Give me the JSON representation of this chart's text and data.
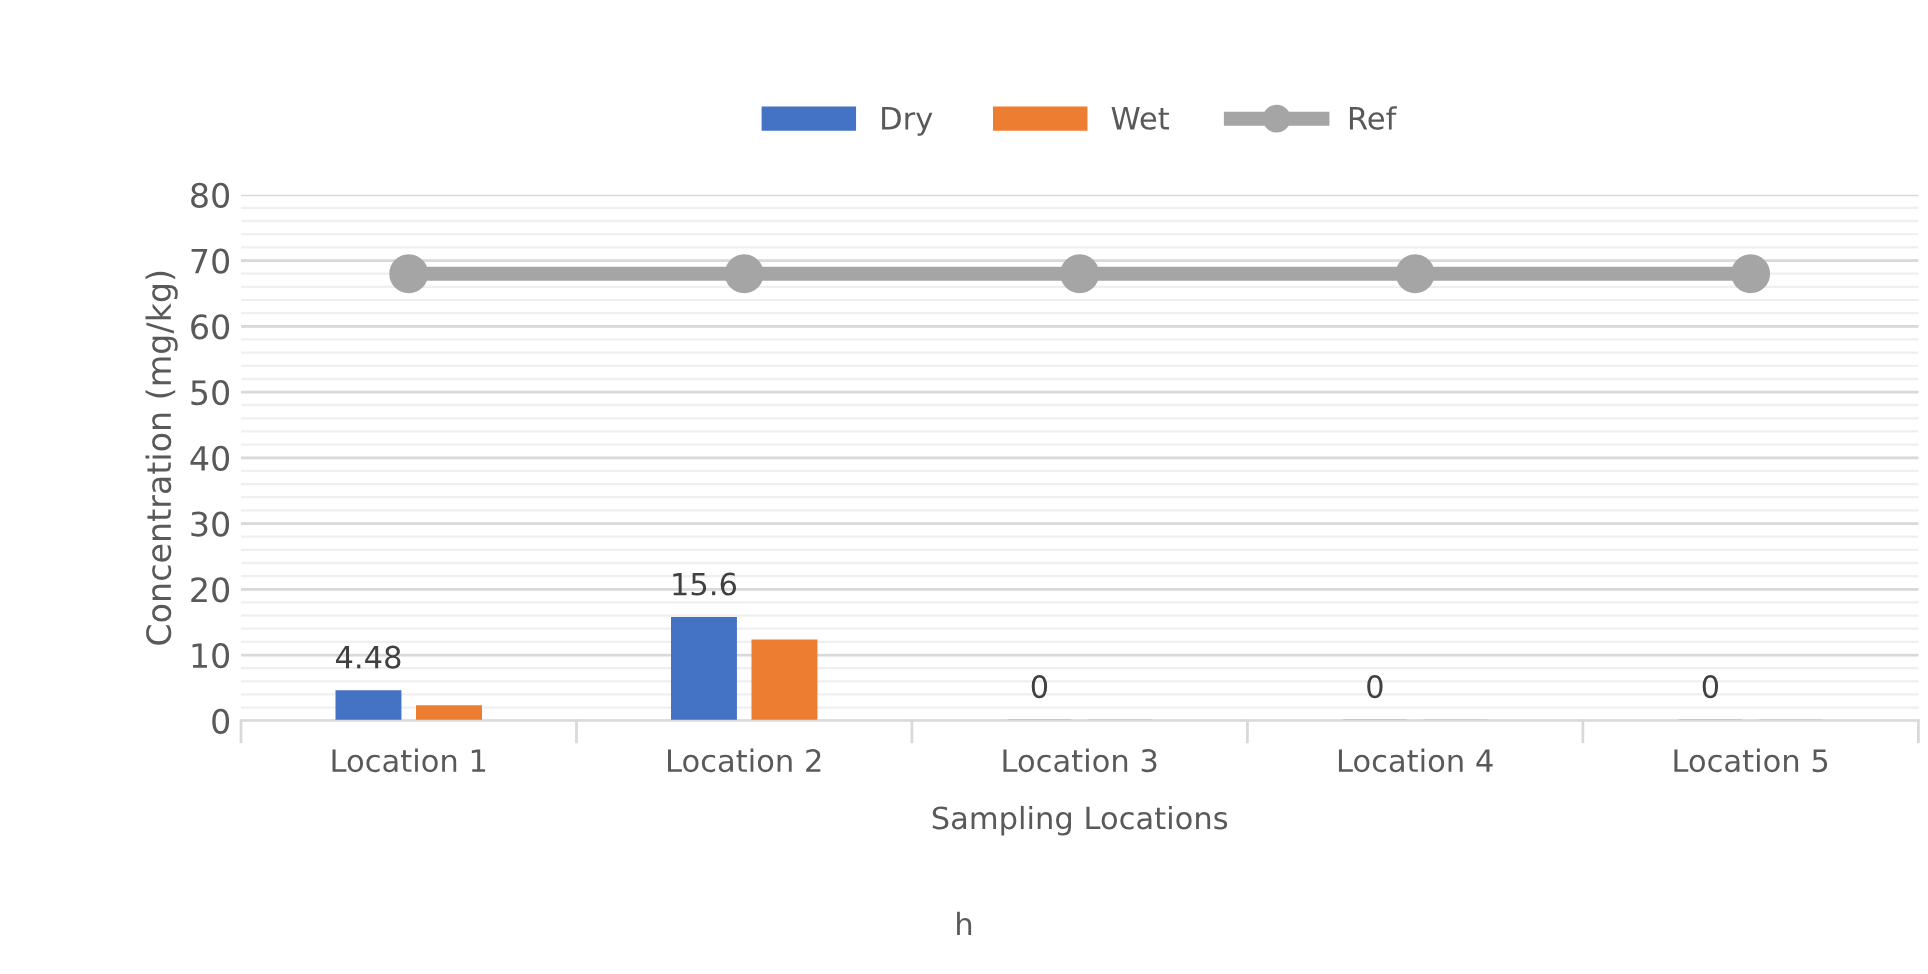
{
  "chart_data": {
    "type": "bar",
    "categories": [
      "Location 1",
      "Location 2",
      "Location 3",
      "Location 4",
      "Location 5"
    ],
    "series": [
      {
        "name": "Dry",
        "color": "#4472c4",
        "values": [
          4.48,
          15.6,
          0,
          0,
          0
        ],
        "value_labels": [
          "4.48",
          "15.6",
          "0",
          "0",
          "0"
        ]
      },
      {
        "name": "Wet",
        "color": "#ed7d31",
        "values": [
          2.2,
          12.2,
          0,
          0,
          0
        ]
      },
      {
        "name": "Ref",
        "type": "line",
        "color": "#a5a5a5",
        "values": [
          68,
          68,
          68,
          68,
          68
        ],
        "marker": "circle"
      }
    ],
    "xlabel": "Sampling Locations",
    "ylabel": "Concentration (mg/kg)",
    "annotations": [
      "h"
    ],
    "ylim": [
      0,
      80
    ],
    "yticks": [
      0,
      10,
      20,
      30,
      40,
      50,
      60,
      70,
      80
    ],
    "grid": "y",
    "legend": "top"
  }
}
